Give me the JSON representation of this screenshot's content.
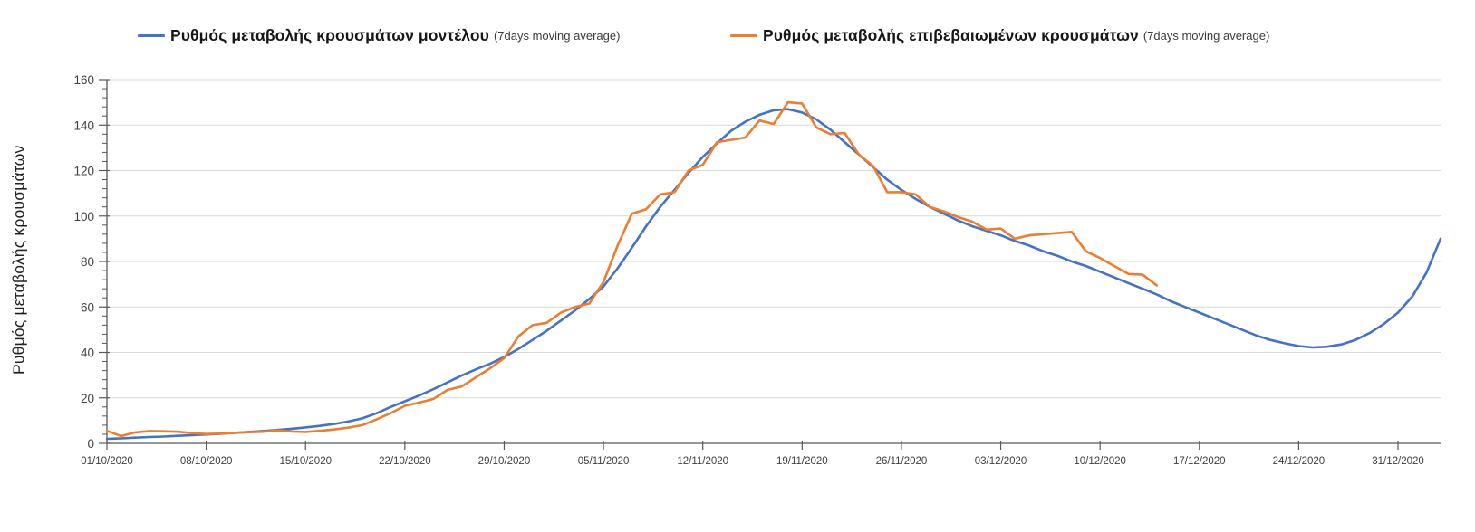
{
  "chart_data": {
    "type": "line",
    "title": "",
    "ylabel": "Ρυθμός μεταβολής κρουσμάτων",
    "ylim": [
      0,
      160
    ],
    "ytick_interval": 20,
    "ytick_labels": [
      "0",
      "20",
      "40",
      "60",
      "80",
      "100",
      "120",
      "140",
      "160"
    ],
    "y_minor_tick_interval": 4,
    "x_start_date": "01/10/2020",
    "x_total_days": 94,
    "xtick_interval_days": 7,
    "xtick_labels": [
      "01/10/2020",
      "08/10/2020",
      "15/10/2020",
      "22/10/2020",
      "29/10/2020",
      "05/11/2020",
      "12/11/2020",
      "19/11/2020",
      "26/11/2020",
      "03/12/2020",
      "10/12/2020",
      "17/12/2020",
      "24/12/2020",
      "31/12/2020"
    ],
    "grid": "horizontal-major",
    "legend_position": "top",
    "colors": {
      "gridline": "#d9d9d9",
      "axis": "#595959",
      "tick_label": "#3f3f3f"
    },
    "series": [
      {
        "name": "Ρυθμός μεταβολής κρουσμάτων μοντέλου",
        "qualifier": "(7days moving average)",
        "color": "#4472C4",
        "start_day": 0,
        "values": [
          2,
          2.2,
          2.5,
          2.8,
          3,
          3.3,
          3.6,
          3.9,
          4.2,
          4.6,
          5,
          5.4,
          5.9,
          6.4,
          7,
          7.7,
          8.5,
          9.6,
          11,
          13.2,
          16,
          18.5,
          21,
          23.8,
          26.8,
          29.8,
          32.5,
          35,
          38,
          41.5,
          45.5,
          49.5,
          54,
          58.5,
          63.5,
          69,
          77,
          86,
          95.5,
          104,
          111.5,
          119,
          126,
          132,
          137.5,
          141.5,
          144.5,
          146.5,
          147,
          145.5,
          142.5,
          138,
          132.5,
          127,
          121.5,
          116,
          111.5,
          107.5,
          104,
          101,
          98,
          95.5,
          93.5,
          91.5,
          89,
          87,
          84.5,
          82.5,
          80,
          78,
          75.5,
          73,
          70.5,
          68,
          65.5,
          62.5,
          60,
          57.5,
          55,
          52.5,
          50,
          47.5,
          45.5,
          44,
          42.8,
          42.2,
          42.5,
          43.5,
          45.5,
          48.5,
          52.5,
          57.5,
          64.5,
          75,
          90
        ]
      },
      {
        "name": "Ρυθμός μεταβολής επιβεβαιωμένων κρουσμάτων",
        "qualifier": "(7days moving average)",
        "color": "#ED7D31",
        "start_day": 0,
        "values": [
          5.5,
          3.2,
          4.8,
          5.4,
          5.3,
          5.1,
          4.5,
          4.1,
          4.3,
          4.6,
          4.9,
          5.1,
          5.7,
          5.2,
          5,
          5.5,
          6.1,
          6.9,
          8,
          10.5,
          13.3,
          16.5,
          17.9,
          19.5,
          23.5,
          25,
          29,
          33,
          37.5,
          47,
          52,
          53,
          57.5,
          60,
          61.5,
          71,
          87,
          101,
          103,
          109.5,
          110.5,
          120,
          122.5,
          132.5,
          133.5,
          134.5,
          142,
          140.5,
          150,
          149.5,
          139,
          136,
          136.5,
          127,
          122,
          110.5,
          110.5,
          109.5,
          104,
          102,
          99.5,
          97.5,
          94,
          94.5,
          90,
          91.5,
          92,
          92.5,
          93,
          84.5,
          81.5,
          78,
          74.5,
          74.2,
          69.5
        ]
      }
    ]
  }
}
